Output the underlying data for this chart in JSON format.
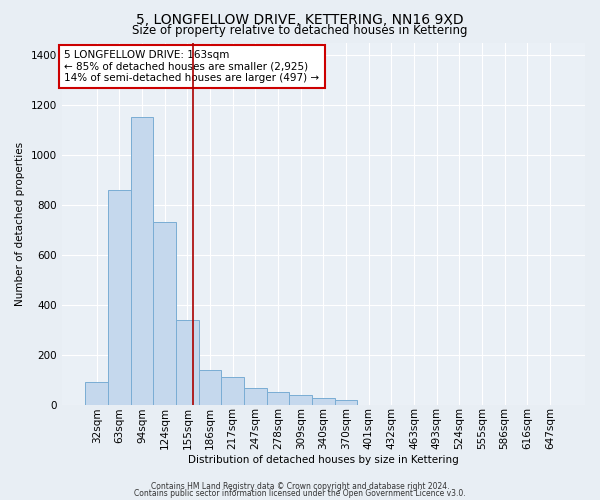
{
  "title": "5, LONGFELLOW DRIVE, KETTERING, NN16 9XD",
  "subtitle": "Size of property relative to detached houses in Kettering",
  "xlabel": "Distribution of detached houses by size in Kettering",
  "ylabel": "Number of detached properties",
  "categories": [
    "32sqm",
    "63sqm",
    "94sqm",
    "124sqm",
    "155sqm",
    "186sqm",
    "217sqm",
    "247sqm",
    "278sqm",
    "309sqm",
    "340sqm",
    "370sqm",
    "401sqm",
    "432sqm",
    "463sqm",
    "493sqm",
    "524sqm",
    "555sqm",
    "586sqm",
    "616sqm",
    "647sqm"
  ],
  "values": [
    90,
    860,
    1150,
    730,
    340,
    140,
    110,
    65,
    50,
    40,
    25,
    20,
    0,
    0,
    0,
    0,
    0,
    0,
    0,
    0,
    0
  ],
  "bar_color": "#c5d8ed",
  "bar_edge_color": "#7aadd4",
  "ylim": [
    0,
    1450
  ],
  "yticks": [
    0,
    200,
    400,
    600,
    800,
    1000,
    1200,
    1400
  ],
  "vline_x": 4.26,
  "vline_color": "#aa0000",
  "annotation_text": "5 LONGFELLOW DRIVE: 163sqm\n← 85% of detached houses are smaller (2,925)\n14% of semi-detached houses are larger (497) →",
  "annotation_box_color": "#ffffff",
  "annotation_box_edge": "#cc0000",
  "footer1": "Contains HM Land Registry data © Crown copyright and database right 2024.",
  "footer2": "Contains public sector information licensed under the Open Government Licence v3.0.",
  "bg_color": "#e8eef4",
  "plot_bg_color": "#eaf0f6"
}
